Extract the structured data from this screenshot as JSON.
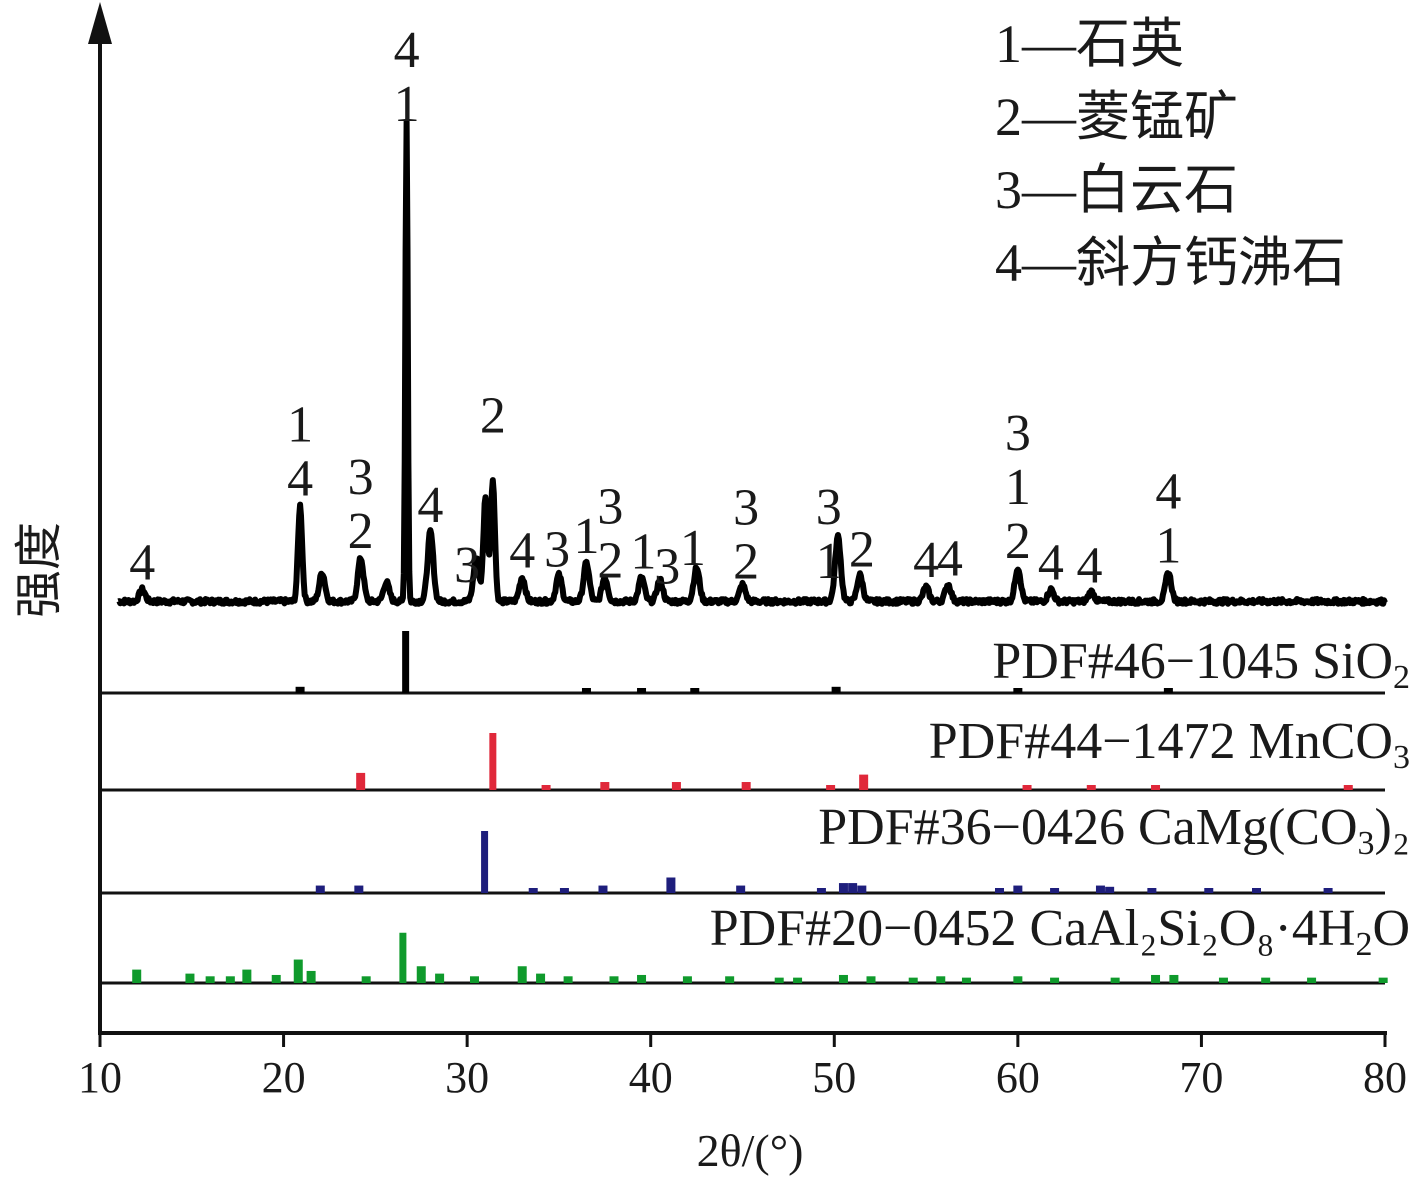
{
  "chart_data": {
    "type": "line",
    "xlabel": "2θ/(°)",
    "ylabel": "强度",
    "xlim": [
      10,
      80
    ],
    "xticks": [
      10,
      20,
      30,
      40,
      50,
      60,
      70,
      80
    ],
    "grid": false,
    "legend_position": "top-right",
    "legend": [
      {
        "num": "1",
        "label": "1—石英"
      },
      {
        "num": "2",
        "label": "2—菱锰矿"
      },
      {
        "num": "3",
        "label": "3—白云石"
      },
      {
        "num": "4",
        "label": "4—斜方钙沸石"
      }
    ],
    "sample_pattern": {
      "color": "#000000",
      "baseline": 0.08,
      "peaks": [
        {
          "x": 12.3,
          "h": 0.05
        },
        {
          "x": 20.9,
          "h": 0.4
        },
        {
          "x": 22.1,
          "h": 0.12
        },
        {
          "x": 24.2,
          "h": 0.18
        },
        {
          "x": 25.6,
          "h": 0.08
        },
        {
          "x": 26.7,
          "h": 2.0
        },
        {
          "x": 28.0,
          "h": 0.29
        },
        {
          "x": 30.5,
          "h": 0.18
        },
        {
          "x": 31.0,
          "h": 0.44
        },
        {
          "x": 31.4,
          "h": 0.5
        },
        {
          "x": 33.0,
          "h": 0.1
        },
        {
          "x": 35.0,
          "h": 0.11
        },
        {
          "x": 36.5,
          "h": 0.16
        },
        {
          "x": 37.5,
          "h": 0.1
        },
        {
          "x": 39.5,
          "h": 0.1
        },
        {
          "x": 40.5,
          "h": 0.09
        },
        {
          "x": 42.5,
          "h": 0.14
        },
        {
          "x": 45.0,
          "h": 0.07
        },
        {
          "x": 50.2,
          "h": 0.27
        },
        {
          "x": 51.4,
          "h": 0.11
        },
        {
          "x": 55.0,
          "h": 0.06
        },
        {
          "x": 56.2,
          "h": 0.07
        },
        {
          "x": 60.0,
          "h": 0.14
        },
        {
          "x": 61.8,
          "h": 0.05
        },
        {
          "x": 64.0,
          "h": 0.04
        },
        {
          "x": 68.2,
          "h": 0.12
        }
      ]
    },
    "peak_labels": [
      {
        "x": 12.3,
        "lines": [
          "4"
        ]
      },
      {
        "x": 20.9,
        "lines": [
          "1",
          "4"
        ]
      },
      {
        "x": 24.2,
        "lines": [
          "3",
          "2"
        ]
      },
      {
        "x": 26.7,
        "lines": [
          "4",
          "1"
        ]
      },
      {
        "x": 28.0,
        "lines": [
          "4"
        ]
      },
      {
        "x": 30.0,
        "lines": [
          "3"
        ]
      },
      {
        "x": 31.4,
        "lines": [
          "2"
        ]
      },
      {
        "x": 33.0,
        "lines": [
          "4"
        ]
      },
      {
        "x": 34.9,
        "lines": [
          "3"
        ]
      },
      {
        "x": 36.5,
        "lines": [
          "1"
        ]
      },
      {
        "x": 37.8,
        "lines": [
          "3",
          "2"
        ]
      },
      {
        "x": 39.6,
        "lines": [
          "1"
        ]
      },
      {
        "x": 40.9,
        "lines": [
          "3"
        ]
      },
      {
        "x": 42.3,
        "lines": [
          "1"
        ]
      },
      {
        "x": 45.2,
        "lines": [
          "3",
          "2"
        ]
      },
      {
        "x": 49.7,
        "lines": [
          "3",
          "1"
        ]
      },
      {
        "x": 51.5,
        "lines": [
          "2"
        ]
      },
      {
        "x": 55.0,
        "lines": [
          "4"
        ]
      },
      {
        "x": 56.3,
        "lines": [
          "4"
        ]
      },
      {
        "x": 60.0,
        "lines": [
          "3",
          "1",
          "2"
        ]
      },
      {
        "x": 61.8,
        "lines": [
          "4"
        ]
      },
      {
        "x": 63.9,
        "lines": [
          "4"
        ]
      },
      {
        "x": 68.2,
        "lines": [
          "4",
          "1"
        ]
      }
    ],
    "reference_patterns": [
      {
        "label_main": "PDF#46−1045 SiO",
        "subscript": "2",
        "label_tail": "",
        "color": "#000000",
        "peaks": [
          {
            "x": 20.9,
            "h": 0.1
          },
          {
            "x": 26.65,
            "h": 1.0
          },
          {
            "x": 36.5,
            "h": 0.06
          },
          {
            "x": 39.5,
            "h": 0.06
          },
          {
            "x": 42.4,
            "h": 0.06
          },
          {
            "x": 50.1,
            "h": 0.1
          },
          {
            "x": 60.0,
            "h": 0.07
          },
          {
            "x": 68.2,
            "h": 0.06
          }
        ]
      },
      {
        "label_main": "PDF#44−1472 MnCO",
        "subscript": "3",
        "label_tail": "",
        "color": "#e0283a",
        "peaks": [
          {
            "x": 24.2,
            "h": 0.3
          },
          {
            "x": 31.4,
            "h": 1.0
          },
          {
            "x": 34.3,
            "h": 0.05
          },
          {
            "x": 37.5,
            "h": 0.14
          },
          {
            "x": 41.4,
            "h": 0.14
          },
          {
            "x": 45.2,
            "h": 0.14
          },
          {
            "x": 49.8,
            "h": 0.07
          },
          {
            "x": 51.6,
            "h": 0.27
          },
          {
            "x": 60.5,
            "h": 0.05
          },
          {
            "x": 64.0,
            "h": 0.05
          },
          {
            "x": 67.5,
            "h": 0.05
          },
          {
            "x": 78.0,
            "h": 0.04
          }
        ]
      },
      {
        "label_main": "PDF#36−0426 CaMg(CO",
        "subscript": "3",
        "label_tail": ")₂",
        "color": "#1e1e7c",
        "peaks": [
          {
            "x": 22.0,
            "h": 0.12
          },
          {
            "x": 24.1,
            "h": 0.12
          },
          {
            "x": 30.95,
            "h": 1.0
          },
          {
            "x": 33.6,
            "h": 0.08
          },
          {
            "x": 35.3,
            "h": 0.08
          },
          {
            "x": 37.4,
            "h": 0.12
          },
          {
            "x": 41.1,
            "h": 0.25
          },
          {
            "x": 44.9,
            "h": 0.12
          },
          {
            "x": 49.3,
            "h": 0.08
          },
          {
            "x": 50.5,
            "h": 0.16
          },
          {
            "x": 51.0,
            "h": 0.16
          },
          {
            "x": 51.5,
            "h": 0.12
          },
          {
            "x": 59.0,
            "h": 0.06
          },
          {
            "x": 60.0,
            "h": 0.12
          },
          {
            "x": 62.0,
            "h": 0.08
          },
          {
            "x": 64.5,
            "h": 0.12
          },
          {
            "x": 65.0,
            "h": 0.1
          },
          {
            "x": 67.3,
            "h": 0.08
          },
          {
            "x": 70.4,
            "h": 0.08
          },
          {
            "x": 73.0,
            "h": 0.06
          },
          {
            "x": 76.9,
            "h": 0.06
          }
        ]
      },
      {
        "label_main": "PDF#20−0452 CaAl₂Si₂O₈·4H",
        "subscript": "2",
        "label_tail": "O",
        "color": "#0f9a2c",
        "peaks": [
          {
            "x": 12.0,
            "h": 0.2
          },
          {
            "x": 14.9,
            "h": 0.14
          },
          {
            "x": 16.0,
            "h": 0.1
          },
          {
            "x": 17.1,
            "h": 0.1
          },
          {
            "x": 18.0,
            "h": 0.2
          },
          {
            "x": 19.6,
            "h": 0.12
          },
          {
            "x": 20.8,
            "h": 0.35
          },
          {
            "x": 21.5,
            "h": 0.18
          },
          {
            "x": 24.5,
            "h": 0.1
          },
          {
            "x": 26.5,
            "h": 0.75
          },
          {
            "x": 27.5,
            "h": 0.25
          },
          {
            "x": 28.5,
            "h": 0.14
          },
          {
            "x": 30.4,
            "h": 0.1
          },
          {
            "x": 33.0,
            "h": 0.25
          },
          {
            "x": 34.0,
            "h": 0.14
          },
          {
            "x": 35.5,
            "h": 0.1
          },
          {
            "x": 38.0,
            "h": 0.1
          },
          {
            "x": 39.5,
            "h": 0.12
          },
          {
            "x": 42.0,
            "h": 0.1
          },
          {
            "x": 44.3,
            "h": 0.1
          },
          {
            "x": 47.0,
            "h": 0.08
          },
          {
            "x": 48.0,
            "h": 0.08
          },
          {
            "x": 50.5,
            "h": 0.12
          },
          {
            "x": 52.0,
            "h": 0.1
          },
          {
            "x": 54.3,
            "h": 0.08
          },
          {
            "x": 55.8,
            "h": 0.1
          },
          {
            "x": 57.2,
            "h": 0.08
          },
          {
            "x": 60.0,
            "h": 0.1
          },
          {
            "x": 62.0,
            "h": 0.08
          },
          {
            "x": 65.3,
            "h": 0.08
          },
          {
            "x": 67.5,
            "h": 0.12
          },
          {
            "x": 68.5,
            "h": 0.12
          },
          {
            "x": 71.2,
            "h": 0.08
          },
          {
            "x": 73.5,
            "h": 0.08
          },
          {
            "x": 76.0,
            "h": 0.08
          },
          {
            "x": 79.9,
            "h": 0.08
          }
        ]
      }
    ]
  }
}
